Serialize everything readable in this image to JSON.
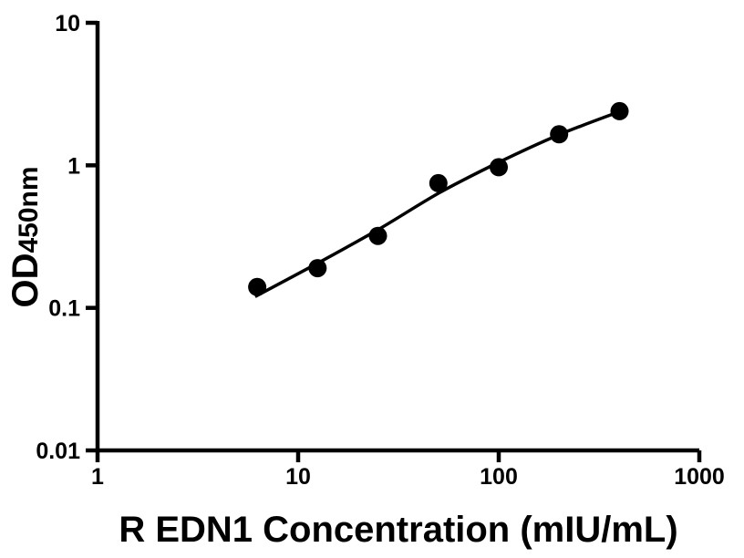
{
  "figure": {
    "background": "#ffffff",
    "ink_color": "#000000"
  },
  "chart_data": {
    "type": "scatter",
    "title": "",
    "xlabel": "R EDN1 Concentration (mIU/mL)",
    "ylabel_main": "OD",
    "ylabel_sub": "450nm",
    "x_scale": "log10",
    "y_scale": "log10",
    "xlim": [
      1,
      1000
    ],
    "ylim": [
      0.01,
      10
    ],
    "x_ticks": [
      1,
      10,
      100,
      1000
    ],
    "x_tick_labels": [
      "1",
      "10",
      "100",
      "1000"
    ],
    "y_ticks": [
      10,
      1,
      0.1,
      0.01
    ],
    "y_tick_labels": [
      "10",
      "1",
      "0.1",
      "0.01"
    ],
    "grid": false,
    "legend": false,
    "marker_color": "#000000",
    "line_color": "#000000",
    "series": [
      {
        "name": "standard-points",
        "kind": "scatter",
        "marker": "filled-circle",
        "points": [
          {
            "x": 6.25,
            "y": 0.14
          },
          {
            "x": 12.5,
            "y": 0.19
          },
          {
            "x": 25,
            "y": 0.32
          },
          {
            "x": 50,
            "y": 0.75
          },
          {
            "x": 100,
            "y": 0.97
          },
          {
            "x": 200,
            "y": 1.65
          },
          {
            "x": 400,
            "y": 2.4
          }
        ]
      },
      {
        "name": "fitted-curve",
        "kind": "line",
        "points": [
          {
            "x": 6.1,
            "y": 0.12
          },
          {
            "x": 12.6,
            "y": 0.207
          },
          {
            "x": 25.2,
            "y": 0.356
          },
          {
            "x": 50.4,
            "y": 0.64
          },
          {
            "x": 100,
            "y": 1.05
          },
          {
            "x": 200,
            "y": 1.64
          },
          {
            "x": 406,
            "y": 2.4
          }
        ]
      }
    ]
  }
}
